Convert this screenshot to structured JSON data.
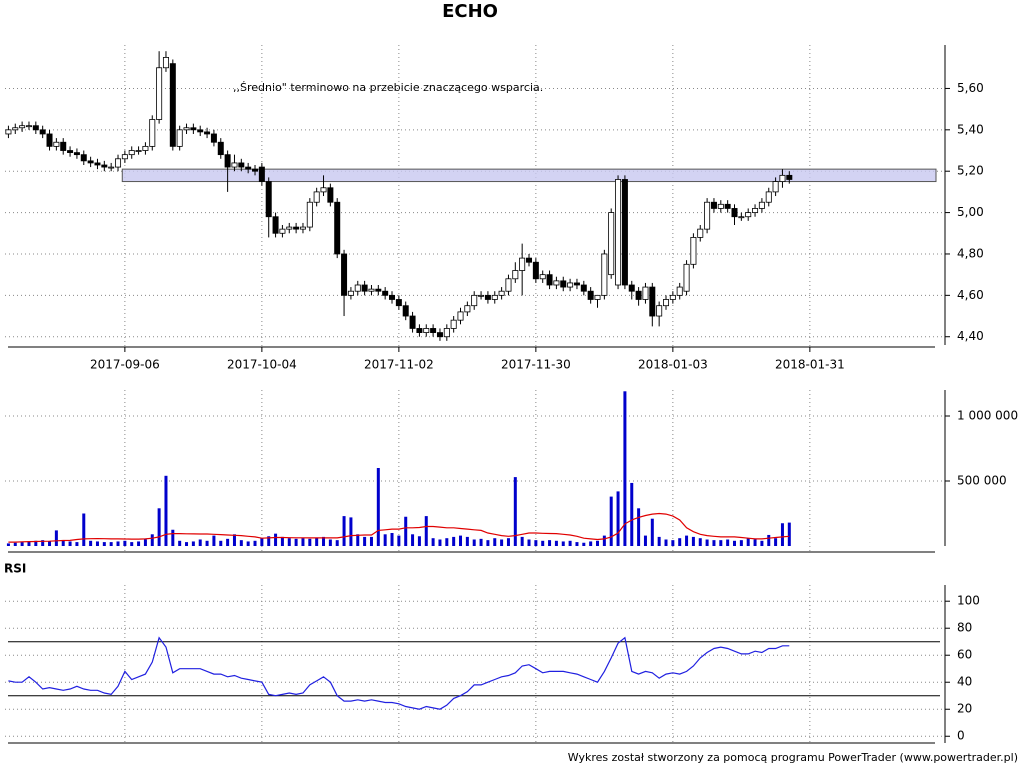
{
  "chart_data": [
    {
      "type": "candlestick",
      "title": "ECHO",
      "annotation": ",,Średnio\" terminowo na przebicie znaczącego wsparcia.",
      "xlim": [
        -0.5,
        136
      ],
      "xticks": [
        {
          "value": 17,
          "label": "2017-09-06"
        },
        {
          "value": 37,
          "label": "2017-10-04"
        },
        {
          "value": 57,
          "label": "2017-11-02"
        },
        {
          "value": 77,
          "label": "2017-11-30"
        },
        {
          "value": 97,
          "label": "2018-01-03"
        },
        {
          "value": 117,
          "label": "2018-01-31"
        }
      ],
      "ylim": [
        4.36,
        5.81
      ],
      "yticks": [
        {
          "value": 4.4,
          "label": "4,40"
        },
        {
          "value": 4.6,
          "label": "4,60"
        },
        {
          "value": 4.8,
          "label": "4,80"
        },
        {
          "value": 5.0,
          "label": "5,00"
        },
        {
          "value": 5.2,
          "label": "5,20"
        },
        {
          "value": 5.4,
          "label": "5,40"
        },
        {
          "value": 5.6,
          "label": "5,60"
        }
      ],
      "grid": true,
      "up_color": "#ffffff",
      "down_color": "#000000",
      "band": {
        "low": 5.15,
        "high": 5.21,
        "from_x": 17,
        "color": "#c8c8f0"
      },
      "open": [
        5.38,
        5.4,
        5.41,
        5.42,
        5.42,
        5.4,
        5.38,
        5.32,
        5.34,
        5.3,
        5.29,
        5.28,
        5.25,
        5.24,
        5.23,
        5.22,
        5.22,
        5.26,
        5.28,
        5.3,
        5.3,
        5.32,
        5.45,
        5.7,
        5.72,
        5.32,
        5.4,
        5.41,
        5.4,
        5.39,
        5.38,
        5.34,
        5.28,
        5.22,
        5.24,
        5.22,
        5.21,
        5.22,
        5.15,
        4.98,
        4.9,
        4.92,
        4.93,
        4.92,
        4.93,
        5.05,
        5.1,
        5.12,
        5.05,
        4.8,
        4.6,
        4.62,
        4.65,
        4.62,
        4.63,
        4.62,
        4.6,
        4.58,
        4.55,
        4.5,
        4.44,
        4.42,
        4.44,
        4.42,
        4.4,
        4.44,
        4.48,
        4.52,
        4.55,
        4.6,
        4.6,
        4.58,
        4.6,
        4.62,
        4.68,
        4.72,
        4.78,
        4.76,
        4.68,
        4.7,
        4.65,
        4.67,
        4.64,
        4.66,
        4.65,
        4.62,
        4.58,
        4.6,
        4.7,
        4.65,
        5.16,
        4.65,
        4.62,
        4.58,
        4.64,
        4.5,
        4.55,
        4.58,
        4.6,
        4.62,
        4.75,
        4.88,
        4.92,
        5.05,
        5.02,
        5.04,
        5.02,
        4.98,
        4.98,
        5.0,
        5.02,
        5.05,
        5.1,
        5.15,
        5.18
      ],
      "high": [
        5.42,
        5.43,
        5.44,
        5.44,
        5.44,
        5.42,
        5.4,
        5.36,
        5.36,
        5.32,
        5.31,
        5.3,
        5.27,
        5.26,
        5.25,
        5.24,
        5.28,
        5.3,
        5.32,
        5.32,
        5.34,
        5.47,
        5.78,
        5.78,
        5.74,
        5.42,
        5.43,
        5.43,
        5.42,
        5.41,
        5.4,
        5.36,
        5.3,
        5.28,
        5.26,
        5.24,
        5.23,
        5.24,
        5.17,
        5.0,
        4.94,
        4.95,
        4.95,
        4.95,
        5.07,
        5.12,
        5.18,
        5.14,
        5.07,
        4.82,
        4.64,
        4.67,
        4.67,
        4.65,
        4.65,
        4.64,
        4.62,
        4.6,
        4.57,
        4.52,
        4.46,
        4.46,
        4.46,
        4.44,
        4.46,
        4.5,
        4.54,
        4.57,
        4.62,
        4.62,
        4.62,
        4.62,
        4.64,
        4.7,
        4.76,
        4.85,
        4.8,
        4.78,
        4.72,
        4.72,
        4.69,
        4.69,
        4.68,
        4.68,
        4.67,
        4.64,
        4.6,
        4.82,
        5.02,
        5.18,
        5.18,
        4.67,
        4.64,
        4.66,
        4.66,
        4.57,
        4.6,
        4.62,
        4.66,
        4.77,
        4.9,
        4.94,
        5.07,
        5.07,
        5.06,
        5.06,
        5.04,
        5.0,
        5.02,
        5.04,
        5.07,
        5.12,
        5.17,
        5.21,
        5.2
      ],
      "low": [
        5.36,
        5.38,
        5.39,
        5.4,
        5.38,
        5.36,
        5.3,
        5.3,
        5.28,
        5.27,
        5.26,
        5.23,
        5.22,
        5.21,
        5.2,
        5.2,
        5.2,
        5.24,
        5.26,
        5.28,
        5.28,
        5.3,
        5.43,
        5.68,
        5.3,
        5.3,
        5.38,
        5.38,
        5.37,
        5.36,
        5.32,
        5.26,
        5.1,
        5.2,
        5.2,
        5.19,
        5.18,
        5.13,
        4.88,
        4.88,
        4.88,
        4.9,
        4.9,
        4.9,
        4.91,
        5.03,
        5.08,
        5.03,
        4.78,
        4.5,
        4.58,
        4.6,
        4.6,
        4.6,
        4.6,
        4.58,
        4.56,
        4.53,
        4.48,
        4.42,
        4.4,
        4.4,
        4.4,
        4.38,
        4.38,
        4.42,
        4.46,
        4.5,
        4.53,
        4.58,
        4.56,
        4.56,
        4.58,
        4.6,
        4.66,
        4.6,
        4.74,
        4.66,
        4.66,
        4.63,
        4.63,
        4.62,
        4.62,
        4.63,
        4.6,
        4.56,
        4.54,
        4.58,
        4.68,
        4.63,
        4.63,
        4.58,
        4.55,
        4.56,
        4.45,
        4.45,
        4.53,
        4.56,
        4.58,
        4.6,
        4.73,
        4.86,
        4.9,
        5.0,
        5.0,
        5.0,
        4.94,
        4.96,
        4.96,
        4.98,
        5.0,
        5.03,
        5.08,
        5.12,
        5.14
      ],
      "close": [
        5.4,
        5.41,
        5.42,
        5.42,
        5.4,
        5.38,
        5.32,
        5.34,
        5.3,
        5.29,
        5.28,
        5.25,
        5.24,
        5.23,
        5.22,
        5.22,
        5.26,
        5.28,
        5.3,
        5.3,
        5.32,
        5.45,
        5.7,
        5.75,
        5.32,
        5.4,
        5.41,
        5.4,
        5.39,
        5.38,
        5.34,
        5.28,
        5.22,
        5.24,
        5.22,
        5.21,
        5.2,
        5.15,
        4.98,
        4.9,
        4.92,
        4.93,
        4.92,
        4.93,
        5.05,
        5.1,
        5.12,
        5.05,
        4.8,
        4.6,
        4.62,
        4.65,
        4.62,
        4.63,
        4.62,
        4.6,
        4.58,
        4.55,
        4.5,
        4.44,
        4.42,
        4.44,
        4.42,
        4.4,
        4.44,
        4.48,
        4.52,
        4.55,
        4.6,
        4.6,
        4.58,
        4.6,
        4.62,
        4.68,
        4.72,
        4.78,
        4.76,
        4.68,
        4.7,
        4.65,
        4.67,
        4.64,
        4.66,
        4.65,
        4.62,
        4.58,
        4.6,
        4.8,
        5.0,
        5.16,
        4.65,
        4.62,
        4.58,
        4.64,
        4.5,
        4.55,
        4.58,
        4.6,
        4.64,
        4.75,
        4.88,
        4.92,
        5.05,
        5.02,
        5.04,
        5.02,
        4.98,
        4.98,
        5.0,
        5.02,
        5.05,
        5.1,
        5.15,
        5.18,
        5.16
      ]
    },
    {
      "type": "bar",
      "xlim": [
        -0.5,
        136
      ],
      "xgrid": [
        17,
        37,
        57,
        77,
        97,
        117
      ],
      "ylim": [
        0,
        1200000
      ],
      "yticks": [
        {
          "value": 500000,
          "label": "500 000"
        },
        {
          "value": 1000000,
          "label": "1 000 000"
        }
      ],
      "grid": true,
      "series": [
        {
          "type": "bar",
          "color": "#0000cc",
          "values": [
            20000,
            25000,
            30000,
            35000,
            40000,
            45000,
            35000,
            120000,
            40000,
            35000,
            30000,
            250000,
            40000,
            35000,
            30000,
            30000,
            35000,
            40000,
            30000,
            35000,
            50000,
            90000,
            290000,
            540000,
            125000,
            40000,
            30000,
            35000,
            50000,
            40000,
            80000,
            40000,
            55000,
            90000,
            45000,
            35000,
            40000,
            60000,
            75000,
            95000,
            70000,
            60000,
            55000,
            60000,
            55000,
            60000,
            70000,
            50000,
            45000,
            230000,
            220000,
            90000,
            70000,
            70000,
            600000,
            90000,
            100000,
            80000,
            225000,
            90000,
            75000,
            230000,
            60000,
            50000,
            60000,
            70000,
            80000,
            70000,
            50000,
            55000,
            45000,
            60000,
            50000,
            60000,
            530000,
            70000,
            50000,
            45000,
            40000,
            45000,
            40000,
            35000,
            40000,
            30000,
            25000,
            35000,
            40000,
            80000,
            380000,
            420000,
            1190000,
            485000,
            290000,
            80000,
            210000,
            70000,
            50000,
            45000,
            60000,
            80000,
            70000,
            60000,
            50000,
            45000,
            45000,
            50000,
            40000,
            45000,
            60000,
            50000,
            40000,
            85000,
            60000,
            175000,
            180000
          ]
        },
        {
          "type": "line",
          "color": "#e00000",
          "values": [
            30000,
            30000,
            32000,
            34000,
            35000,
            36000,
            37000,
            40000,
            42000,
            43000,
            50000,
            55000,
            56000,
            57000,
            56000,
            55000,
            55000,
            54000,
            53000,
            53000,
            55000,
            60000,
            70000,
            90000,
            95000,
            95000,
            94000,
            93000,
            92000,
            92000,
            90000,
            88000,
            85000,
            82000,
            80000,
            75000,
            70000,
            60000,
            62000,
            65000,
            65000,
            64000,
            63000,
            63000,
            62000,
            62000,
            63000,
            62000,
            62000,
            70000,
            80000,
            82000,
            85000,
            85000,
            120000,
            125000,
            130000,
            130000,
            140000,
            140000,
            142000,
            150000,
            150000,
            145000,
            140000,
            140000,
            135000,
            130000,
            125000,
            120000,
            100000,
            90000,
            80000,
            75000,
            80000,
            90000,
            100000,
            100000,
            98000,
            96000,
            95000,
            90000,
            85000,
            75000,
            60000,
            55000,
            50000,
            55000,
            70000,
            100000,
            170000,
            200000,
            220000,
            235000,
            245000,
            250000,
            245000,
            230000,
            200000,
            140000,
            110000,
            90000,
            80000,
            75000,
            70000,
            70000,
            70000,
            65000,
            60000,
            55000,
            55000,
            60000,
            65000,
            70000,
            75000
          ]
        }
      ]
    },
    {
      "type": "line",
      "title": "RSI",
      "xlim": [
        -0.5,
        136
      ],
      "xgrid": [
        17,
        37,
        57,
        77,
        97,
        117
      ],
      "ylim": [
        -5,
        112
      ],
      "yticks": [
        0,
        20,
        40,
        60,
        80,
        100
      ],
      "grid": true,
      "reference_lines": [
        30,
        70
      ],
      "series": [
        {
          "type": "line",
          "color": "#2020e0",
          "values": [
            41,
            40,
            40,
            44,
            40,
            35,
            36,
            35,
            34,
            35,
            37,
            35,
            34,
            34,
            32,
            31,
            37,
            48,
            42,
            44,
            46,
            55,
            73,
            66,
            47,
            50,
            50,
            50,
            50,
            48,
            46,
            46,
            44,
            45,
            43,
            42,
            41,
            40,
            31,
            30,
            31,
            32,
            31,
            32,
            38,
            41,
            44,
            40,
            30,
            26,
            26,
            27,
            26,
            27,
            26,
            25,
            25,
            24,
            22,
            21,
            20,
            22,
            21,
            20,
            23,
            28,
            30,
            33,
            38,
            38,
            40,
            42,
            44,
            45,
            47,
            52,
            53,
            50,
            47,
            48,
            48,
            48,
            47,
            46,
            44,
            42,
            40,
            48,
            58,
            69,
            73,
            48,
            46,
            48,
            47,
            43,
            46,
            47,
            46,
            48,
            52,
            58,
            62,
            65,
            66,
            65,
            63,
            61,
            61,
            63,
            62,
            65,
            65,
            67,
            67
          ]
        }
      ]
    }
  ],
  "footer": "Wykres został stworzony za pomocą programu PowerTrader (www.powertrader.pl)"
}
